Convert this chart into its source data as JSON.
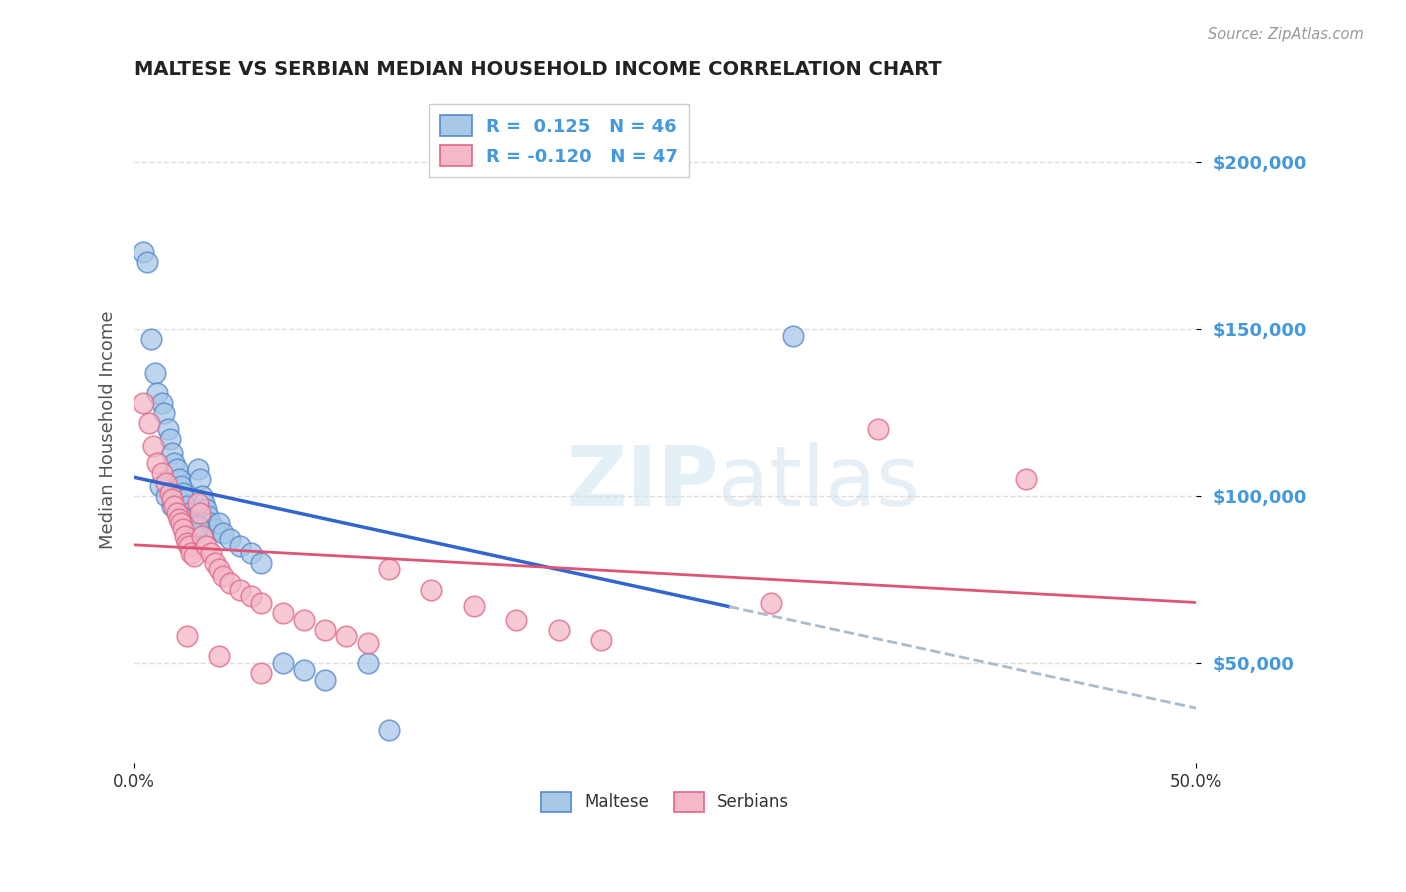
{
  "title": "MALTESE VS SERBIAN MEDIAN HOUSEHOLD INCOME CORRELATION CHART",
  "source": "Source: ZipAtlas.com",
  "ylabel": "Median Household Income",
  "yticks": [
    50000,
    100000,
    150000,
    200000
  ],
  "ytick_labels": [
    "$50,000",
    "$100,000",
    "$150,000",
    "$200,000"
  ],
  "xlim": [
    0.0,
    0.5
  ],
  "ylim": [
    20000,
    220000
  ],
  "maltese_fill": "#a8c8e8",
  "maltese_edge": "#5588cc",
  "serbian_fill": "#f4b8c8",
  "serbian_edge": "#e06888",
  "maltese_line_color": "#3366cc",
  "serbian_line_color": "#dd5577",
  "dashed_color": "#aabbcc",
  "bottom_legend_maltese": "Maltese",
  "bottom_legend_serbian": "Serbians",
  "background_color": "#ffffff",
  "grid_color": "#dddddd",
  "title_color": "#222222",
  "axis_label_color": "#555555",
  "tick_label_color": "#4499dd",
  "source_color": "#999999",
  "maltese_x": [
    0.004,
    0.006,
    0.008,
    0.01,
    0.011,
    0.013,
    0.014,
    0.016,
    0.017,
    0.018,
    0.019,
    0.02,
    0.021,
    0.022,
    0.023,
    0.024,
    0.025,
    0.026,
    0.027,
    0.028,
    0.029,
    0.03,
    0.031,
    0.032,
    0.033,
    0.034,
    0.035,
    0.036,
    0.038,
    0.04,
    0.042,
    0.045,
    0.05,
    0.055,
    0.06,
    0.07,
    0.08,
    0.09,
    0.11,
    0.12,
    0.31,
    0.012,
    0.015,
    0.018,
    0.022,
    0.03
  ],
  "maltese_y": [
    173000,
    170000,
    147000,
    137000,
    131000,
    128000,
    125000,
    120000,
    117000,
    113000,
    110000,
    108000,
    105000,
    103000,
    101000,
    99000,
    97000,
    95000,
    93000,
    91000,
    89000,
    108000,
    105000,
    100000,
    98000,
    96000,
    94000,
    92000,
    90000,
    92000,
    89000,
    87000,
    85000,
    83000,
    80000,
    50000,
    48000,
    45000,
    50000,
    30000,
    148000,
    103000,
    100000,
    97000,
    94000,
    91000
  ],
  "serbian_x": [
    0.004,
    0.007,
    0.009,
    0.011,
    0.013,
    0.015,
    0.017,
    0.018,
    0.019,
    0.02,
    0.021,
    0.022,
    0.023,
    0.024,
    0.025,
    0.026,
    0.027,
    0.028,
    0.03,
    0.031,
    0.032,
    0.034,
    0.036,
    0.038,
    0.04,
    0.042,
    0.045,
    0.05,
    0.055,
    0.06,
    0.07,
    0.08,
    0.09,
    0.1,
    0.11,
    0.12,
    0.14,
    0.16,
    0.18,
    0.2,
    0.22,
    0.3,
    0.35,
    0.42,
    0.025,
    0.04,
    0.06
  ],
  "serbian_y": [
    128000,
    122000,
    115000,
    110000,
    107000,
    104000,
    101000,
    99000,
    97000,
    95000,
    93000,
    92000,
    90000,
    88000,
    86000,
    85000,
    83000,
    82000,
    98000,
    95000,
    88000,
    85000,
    83000,
    80000,
    78000,
    76000,
    74000,
    72000,
    70000,
    68000,
    65000,
    63000,
    60000,
    58000,
    56000,
    78000,
    72000,
    67000,
    63000,
    60000,
    57000,
    68000,
    120000,
    105000,
    58000,
    52000,
    47000
  ]
}
